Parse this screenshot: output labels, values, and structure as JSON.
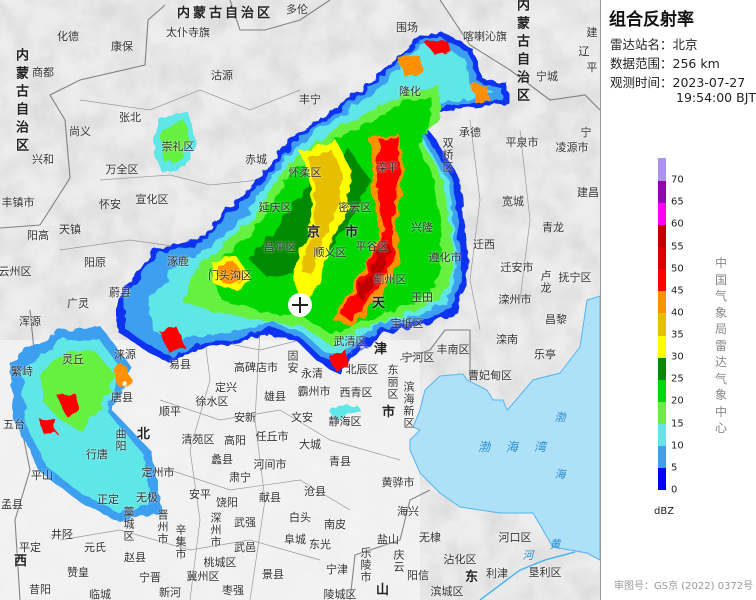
{
  "panel": {
    "title": "组合反射率",
    "station_label": "雷达站名：",
    "station": "北京",
    "range_label": "数据范围：",
    "range": "256 km",
    "time_label": "观测时间：",
    "date": "2023-07-27",
    "time": "19:54:00 BJT",
    "organization": "中国气象局雷达气象中心",
    "approval": "审图号：GS京 (2022) 0372号"
  },
  "legend": {
    "unit": "dBZ",
    "ticks": [
      "0",
      "5",
      "10",
      "15",
      "20",
      "25",
      "30",
      "35",
      "40",
      "45",
      "50",
      "55",
      "60",
      "65",
      "70"
    ],
    "colors": [
      "#0000f6",
      "#3c9ff0",
      "#5fe6e6",
      "#66f040",
      "#00d800",
      "#008a00",
      "#ffff00",
      "#e6c000",
      "#ff9000",
      "#ff0000",
      "#d80000",
      "#c00000",
      "#ff00f0",
      "#9600b4",
      "#ad90f0"
    ]
  },
  "map": {
    "sea_color": "#aee0f8",
    "labels": [
      "内蒙古自治区",
      "多伦",
      "内蒙古自治区",
      "化德",
      "康保",
      "太仆寺旗",
      "商都",
      "沽源",
      "尚义",
      "张北",
      "兴和",
      "崇礼区",
      "万全区",
      "赤城",
      "丰镇市",
      "宣化区",
      "怀安",
      "天镇",
      "阳高",
      "阳原",
      "涿鹿",
      "云州区",
      "延庆区",
      "昌平区",
      "门头沟区",
      "蔚县",
      "围场",
      "喀喇沁旗",
      "内蒙古自治区",
      "宁城",
      "建",
      "辽",
      "平",
      "丰宁",
      "隆化",
      "承德",
      "双桥区",
      "平泉市",
      "宁",
      "凌源市",
      "怀柔区",
      "建昌",
      "宽城",
      "兴隆",
      "青龙",
      "迁西",
      "遵化市",
      "迁安市",
      "卢龙",
      "抚宁区",
      "京",
      "市",
      "顺义区",
      "蓟州区",
      "玉田",
      "滦州市",
      "浑源",
      "广灵",
      "灵丘",
      "涞源",
      "繁峙",
      "唐县",
      "易县",
      "五台",
      "顺平",
      "北",
      "曲阳",
      "定兴",
      "高碑店市",
      "固安",
      "徐水区",
      "雄县",
      "安新",
      "清苑区",
      "高阳",
      "任丘市",
      "蠡县",
      "河间市",
      "定州市",
      "平山",
      "行唐",
      "肃宁",
      "献县",
      "安平",
      "饶阳",
      "无极",
      "正定",
      "藁城区",
      "晋州市",
      "辛集市",
      "深州市",
      "武强",
      "白头",
      "孟县",
      "井陉",
      "平定",
      "元氏",
      "赵县",
      "武邑",
      "阜城",
      "桃城区",
      "景县",
      "赞皇",
      "宁晋",
      "冀州区",
      "枣强",
      "新河",
      "昔阳",
      "西",
      "临城",
      "天",
      "津",
      "市",
      "宝坻区",
      "丰南区",
      "宁河区",
      "武清区",
      "北辰区",
      "东丽区",
      "西青区",
      "滨海新区",
      "静海区",
      "霸州市",
      "永清",
      "文安",
      "大城",
      "青县",
      "沧县",
      "黄骅市",
      "海兴",
      "南皮",
      "盐山",
      "东光",
      "无棣",
      "乐陵市",
      "庆云",
      "宁津",
      "阳信",
      "沾化区",
      "河口区",
      "利津",
      "垦利区",
      "滨城区",
      "陵城区",
      "山",
      "东",
      "曹妃甸区",
      "滦南",
      "乐亭",
      "昌黎",
      "渤海湾",
      "渤",
      "海",
      "黄",
      "河",
      "平谷区",
      "密云区",
      "滦平"
    ]
  }
}
